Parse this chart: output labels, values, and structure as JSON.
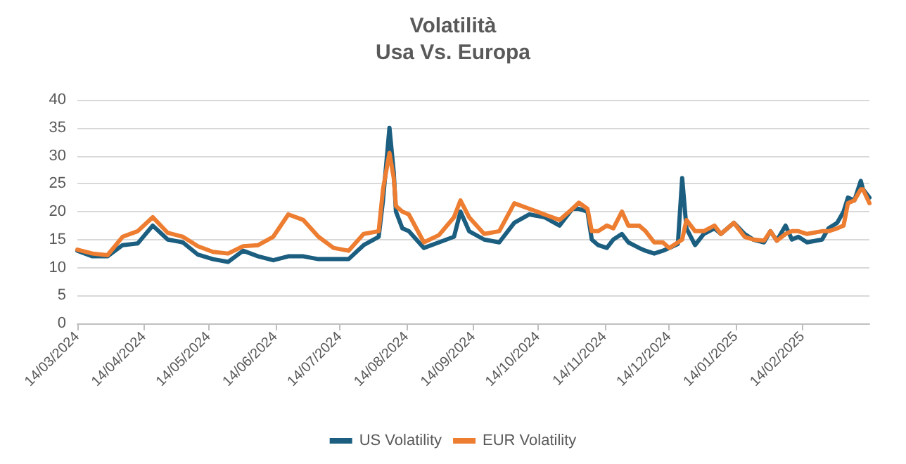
{
  "chart_data": {
    "type": "line",
    "title": "Volatilità",
    "subtitle": "Usa Vs. Europa",
    "x": [
      "2024-03-14",
      "2024-03-21",
      "2024-03-28",
      "2024-04-04",
      "2024-04-11",
      "2024-04-18",
      "2024-04-25",
      "2024-05-02",
      "2024-05-09",
      "2024-05-16",
      "2024-05-23",
      "2024-05-30",
      "2024-06-06",
      "2024-06-13",
      "2024-06-20",
      "2024-06-27",
      "2024-07-04",
      "2024-07-11",
      "2024-07-18",
      "2024-07-25",
      "2024-08-01",
      "2024-08-03",
      "2024-08-06",
      "2024-08-08",
      "2024-08-09",
      "2024-08-12",
      "2024-08-15",
      "2024-08-22",
      "2024-08-29",
      "2024-09-05",
      "2024-09-08",
      "2024-09-12",
      "2024-09-19",
      "2024-09-26",
      "2024-10-03",
      "2024-10-10",
      "2024-10-17",
      "2024-10-24",
      "2024-10-30",
      "2024-11-02",
      "2024-11-06",
      "2024-11-08",
      "2024-11-11",
      "2024-11-15",
      "2024-11-18",
      "2024-11-22",
      "2024-11-25",
      "2024-11-30",
      "2024-12-03",
      "2024-12-07",
      "2024-12-11",
      "2024-12-14",
      "2024-12-18",
      "2024-12-20",
      "2024-12-22",
      "2024-12-26",
      "2024-12-30",
      "2025-01-04",
      "2025-01-07",
      "2025-01-13",
      "2025-01-18",
      "2025-01-22",
      "2025-01-27",
      "2025-01-30",
      "2025-02-02",
      "2025-02-06",
      "2025-02-09",
      "2025-02-12",
      "2025-02-16",
      "2025-02-23",
      "2025-02-26",
      "2025-03-02",
      "2025-03-05",
      "2025-03-07",
      "2025-03-10",
      "2025-03-13",
      "2025-03-14",
      "2025-03-17"
    ],
    "series": [
      {
        "name": "US Volatility",
        "color": "#1b5e80",
        "values": [
          13,
          12,
          12,
          14,
          14.3,
          17.5,
          15,
          14.5,
          12.3,
          11.5,
          11,
          13,
          12,
          11.3,
          12,
          12,
          11.5,
          11.5,
          11.5,
          14,
          15.5,
          22,
          35,
          27,
          20,
          17,
          16.5,
          13.5,
          14.5,
          15.5,
          20,
          16.5,
          15,
          14.5,
          18,
          19.5,
          19,
          17.5,
          20.5,
          20.5,
          20,
          15,
          14,
          13.5,
          15,
          16,
          14.5,
          13.5,
          13,
          12.5,
          13,
          13.5,
          14.2,
          26,
          17,
          14,
          16,
          17,
          16,
          18,
          16,
          15,
          14.5,
          16.5,
          14.8,
          17.5,
          15,
          15.5,
          14.5,
          15,
          17,
          18,
          20,
          22.5,
          22,
          25.5,
          24,
          22.5
        ]
      },
      {
        "name": "EUR Volatility",
        "color": "#ed7d31",
        "values": [
          13.2,
          12.5,
          12.2,
          15.5,
          16.5,
          19,
          16.2,
          15.5,
          13.8,
          12.8,
          12.5,
          13.8,
          14,
          15.5,
          19.5,
          18.5,
          15.5,
          13.5,
          13,
          16,
          16.5,
          24,
          30.5,
          26,
          21,
          20,
          19.5,
          14.5,
          15.8,
          19,
          22,
          19,
          16,
          16.5,
          21.5,
          20.5,
          19.5,
          18.5,
          20.5,
          21.6,
          20.5,
          16.5,
          16.5,
          17.5,
          17,
          20,
          17.5,
          17.5,
          16.5,
          14.5,
          14.5,
          13.5,
          14.5,
          15,
          18.5,
          16.5,
          16.5,
          17.5,
          16,
          18,
          15.5,
          15,
          14.8,
          16.5,
          14.8,
          16,
          16.5,
          16.5,
          16,
          16.5,
          16.5,
          17,
          17.5,
          21.5,
          22,
          24,
          24,
          21.5
        ]
      }
    ],
    "xlim": [
      "2024-03-14",
      "2025-03-17"
    ],
    "xticks": [
      {
        "value": "2024-03-14",
        "label": "14/03/2024"
      },
      {
        "value": "2024-04-14",
        "label": "14/04/2024"
      },
      {
        "value": "2024-05-14",
        "label": "14/05/2024"
      },
      {
        "value": "2024-06-14",
        "label": "14/06/2024"
      },
      {
        "value": "2024-07-14",
        "label": "14/07/2024"
      },
      {
        "value": "2024-08-14",
        "label": "14/08/2024"
      },
      {
        "value": "2024-09-14",
        "label": "14/09/2024"
      },
      {
        "value": "2024-10-14",
        "label": "14/10/2024"
      },
      {
        "value": "2024-11-14",
        "label": "14/11/2024"
      },
      {
        "value": "2024-12-14",
        "label": "14/12/2024"
      },
      {
        "value": "2025-01-14",
        "label": "14/01/2025"
      },
      {
        "value": "2025-02-14",
        "label": "14/02/2025"
      }
    ],
    "ylim": [
      0,
      40
    ],
    "yticks": [
      0,
      5,
      10,
      15,
      20,
      25,
      30,
      35,
      40
    ],
    "grid": "y",
    "legend": "bottom",
    "marker": "none",
    "line_style": "solid"
  }
}
